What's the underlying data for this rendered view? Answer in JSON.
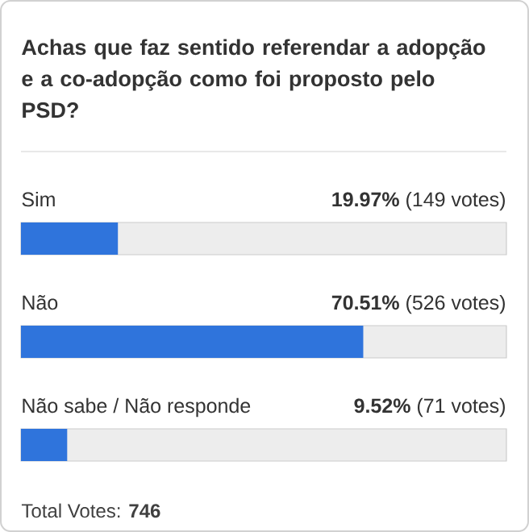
{
  "chart_data": {
    "type": "bar",
    "orientation": "horizontal",
    "title": "Achas que faz sentido referendar a adopção e a co-adopção como foi proposto pelo PSD?",
    "categories": [
      "Sim",
      "Não",
      "Não sabe / Não responde"
    ],
    "values": [
      19.97,
      70.51,
      9.52
    ],
    "value_labels": [
      "**19.97%** (149 votes)",
      "**70.51%** (526 votes)",
      "**9.52%** (71 votes)"
    ],
    "color": "#2f74dc",
    "xlim": [
      0,
      100
    ],
    "annotations": [
      "Total Votes: **746**"
    ]
  }
}
